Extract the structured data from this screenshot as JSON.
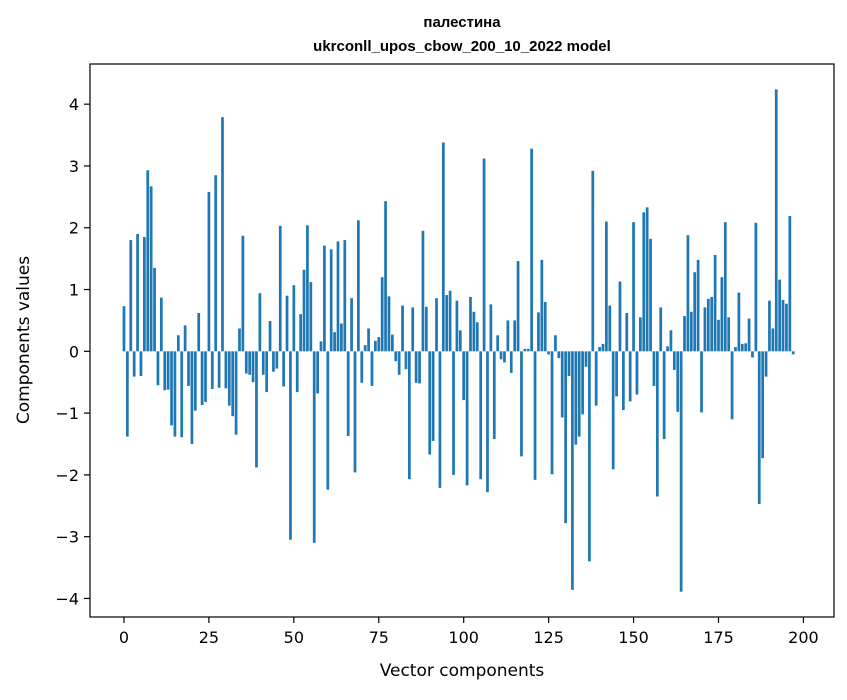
{
  "chart_data": {
    "type": "bar",
    "title": "палестина",
    "subtitle": "ukrconll_upos_cbow_200_10_2022 model",
    "xlabel": "Vector components",
    "ylabel": "Components values",
    "xlim": [
      -10,
      209
    ],
    "ylim": [
      -4.3,
      4.65
    ],
    "xticks": [
      0,
      25,
      50,
      75,
      100,
      125,
      150,
      175,
      200
    ],
    "yticks": [
      -4,
      -3,
      -2,
      -1,
      0,
      1,
      2,
      3,
      4
    ],
    "xtick_labels": [
      "0",
      "25",
      "50",
      "75",
      "100",
      "125",
      "150",
      "175",
      "200"
    ],
    "ytick_labels": [
      "−4",
      "−3",
      "−2",
      "−1",
      "0",
      "1",
      "2",
      "3",
      "4"
    ],
    "bar_color": "#1f77b4",
    "grid": false,
    "values": [
      0.73,
      -1.38,
      1.8,
      -0.41,
      1.9,
      -0.4,
      1.85,
      2.93,
      2.67,
      1.35,
      -0.55,
      0.87,
      -0.63,
      -0.62,
      -1.2,
      -1.38,
      0.26,
      -1.39,
      0.42,
      -0.56,
      -1.5,
      -0.96,
      0.62,
      -0.87,
      -0.82,
      2.58,
      -0.61,
      2.85,
      -0.59,
      3.79,
      -0.6,
      -0.88,
      -1.05,
      -1.35,
      0.37,
      1.87,
      -0.36,
      -0.38,
      -0.5,
      -1.88,
      0.94,
      -0.38,
      -0.66,
      0.49,
      -0.33,
      -0.28,
      2.03,
      -0.57,
      0.9,
      -3.05,
      1.07,
      -0.66,
      0.6,
      1.32,
      2.04,
      1.12,
      -3.1,
      -0.68,
      0.16,
      1.71,
      -2.24,
      1.65,
      0.31,
      1.78,
      0.45,
      1.8,
      -1.37,
      0.86,
      -1.96,
      2.12,
      -0.51,
      0.1,
      0.37,
      -0.56,
      0.17,
      0.23,
      1.2,
      2.43,
      0.89,
      0.27,
      -0.16,
      -0.38,
      0.74,
      -0.29,
      -2.07,
      0.71,
      -0.51,
      -0.52,
      1.95,
      0.72,
      -1.67,
      -1.45,
      0.86,
      -2.21,
      3.38,
      0.91,
      0.98,
      -2.0,
      0.82,
      0.34,
      -0.79,
      -2.17,
      0.88,
      0.64,
      0.47,
      -2.07,
      3.12,
      -2.28,
      0.76,
      -1.42,
      0.26,
      -0.13,
      -0.18,
      0.5,
      -0.35,
      0.5,
      1.46,
      -1.7,
      0.04,
      0.04,
      3.28,
      -2.08,
      0.63,
      1.48,
      0.8,
      -0.05,
      -1.99,
      0.26,
      -0.11,
      -1.07,
      -2.78,
      -0.4,
      -3.86,
      -1.51,
      -1.38,
      -1.02,
      -0.25,
      -3.4,
      2.92,
      -0.88,
      0.07,
      0.12,
      2.1,
      0.74,
      -1.91,
      -0.73,
      1.13,
      -0.95,
      0.62,
      -0.81,
      2.09,
      -0.7,
      0.55,
      2.25,
      2.33,
      1.82,
      -0.56,
      -2.35,
      0.71,
      -1.42,
      0.08,
      0.34,
      -0.3,
      -0.98,
      -3.89,
      0.57,
      1.88,
      0.64,
      1.28,
      1.48,
      -0.99,
      0.71,
      0.85,
      0.88,
      1.56,
      0.51,
      1.2,
      2.09,
      0.55,
      -1.1,
      0.07,
      0.95,
      0.12,
      0.13,
      0.53,
      -0.1,
      2.08,
      -2.47,
      -1.73,
      -0.41,
      0.82,
      0.37,
      4.24,
      1.16,
      0.83,
      0.77,
      2.19,
      -0.05
    ]
  }
}
